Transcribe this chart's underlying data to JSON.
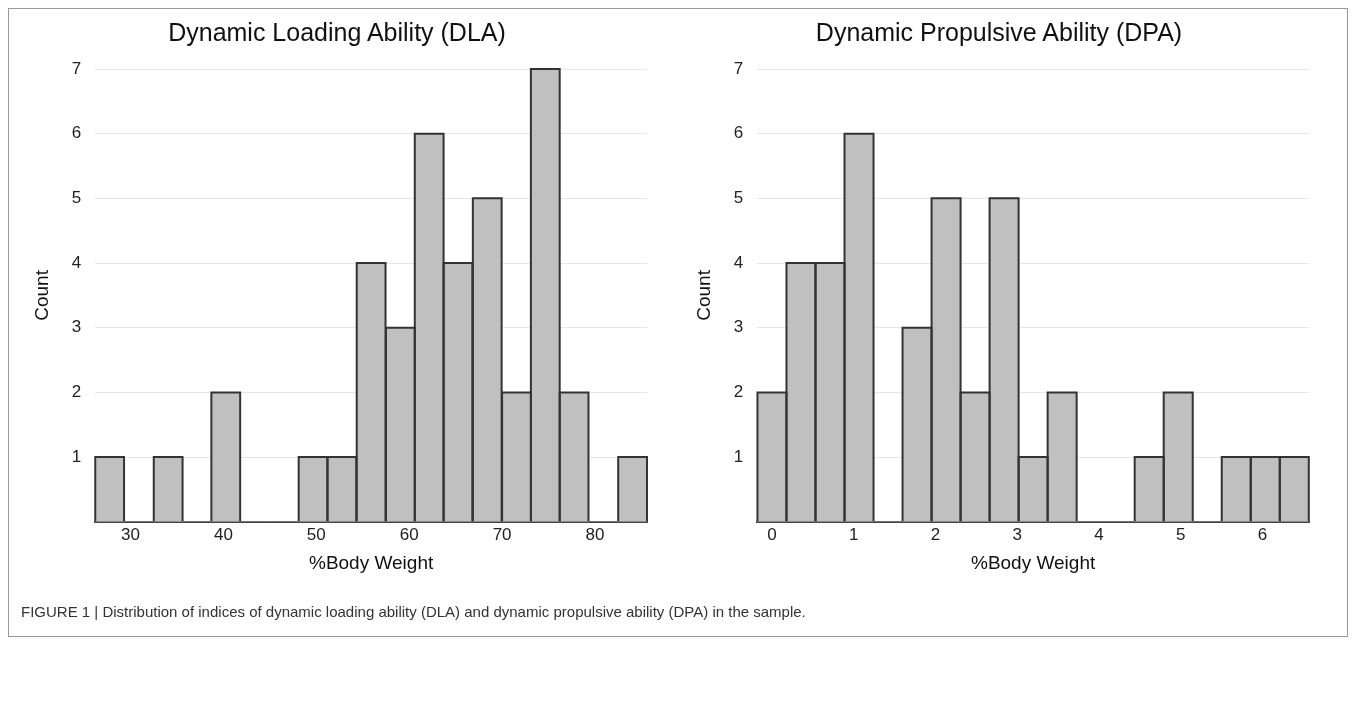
{
  "chart_data": [
    {
      "type": "histogram",
      "title": "Dynamic Loading Ability (DLA)",
      "xlabel": "%Body Weight",
      "ylabel": "Count",
      "bins": [
        26.2,
        29.3,
        32.5,
        35.6,
        38.7,
        41.8,
        45.0,
        48.1,
        51.2,
        54.3,
        57.5,
        60.6,
        63.7,
        66.8,
        70.0,
        73.1,
        76.2,
        79.3,
        82.5,
        85.6
      ],
      "values": [
        1,
        0,
        1,
        0,
        2,
        0,
        0,
        1,
        1,
        4,
        3,
        6,
        4,
        5,
        2,
        7,
        2,
        0,
        1
      ],
      "color": "#c0c0c0",
      "xlim": [
        26.2,
        85.6
      ],
      "xticks": [
        30,
        40,
        50,
        60,
        70,
        80
      ],
      "ylim": [
        0,
        7
      ],
      "yticks": [
        {
          "value": 0,
          "label": null
        },
        1,
        2,
        3,
        4,
        5,
        6,
        7
      ],
      "grid": "y",
      "legend": false,
      "annotations": [
        "FIGURE 1 | Distribution of indices of dynamic loading ability (DLA) and dynamic propulsive ability (DPA) in the sample."
      ]
    },
    {
      "type": "histogram",
      "title": "Dynamic Propulsive Ability (DPA)",
      "xlabel": "%Body Weight",
      "ylabel": "Count",
      "bins": [
        -0.18,
        0.18,
        0.53,
        0.89,
        1.24,
        1.6,
        1.95,
        2.31,
        2.66,
        3.02,
        3.37,
        3.73,
        4.08,
        4.44,
        4.79,
        5.15,
        5.5,
        5.86,
        6.21,
        6.57
      ],
      "values": [
        2,
        4,
        4,
        6,
        0,
        3,
        5,
        2,
        5,
        1,
        2,
        0,
        0,
        1,
        2,
        0,
        1,
        1,
        1
      ],
      "color": "#c0c0c0",
      "xlim": [
        -0.18,
        6.57
      ],
      "xticks": [
        0,
        1,
        2,
        3,
        4,
        5,
        6
      ],
      "ylim": [
        0,
        7
      ],
      "yticks": [
        {
          "value": 0,
          "label": null
        },
        1,
        2,
        3,
        4,
        5,
        6,
        7
      ],
      "grid": "y",
      "legend": false
    }
  ]
}
